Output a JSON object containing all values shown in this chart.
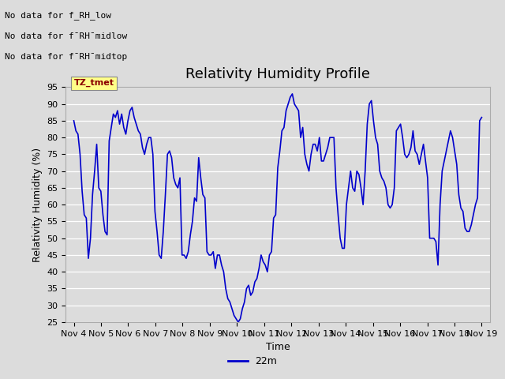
{
  "title": "Relativity Humidity Profile",
  "xlabel": "Time",
  "ylabel": "Relativity Humidity (%)",
  "ylim": [
    25,
    95
  ],
  "yticks": [
    25,
    30,
    35,
    40,
    45,
    50,
    55,
    60,
    65,
    70,
    75,
    80,
    85,
    90,
    95
  ],
  "line_color": "#0000cc",
  "line_width": 1.2,
  "bg_color": "#dcdcdc",
  "legend_label": "22m",
  "no_data_texts": [
    "No data for f_RH_low",
    "No data for f¯RH¯midlow",
    "No data for f¯RH¯midtop"
  ],
  "x_tick_labels": [
    "Nov 4",
    "Nov 5",
    "Nov 6",
    "Nov 7",
    "Nov 8",
    "Nov 9",
    "Nov 10",
    "Nov 11",
    "Nov 12",
    "Nov 13",
    "Nov 14",
    "Nov 15",
    "Nov 16",
    "Nov 17",
    "Nov 18",
    "Nov 19"
  ],
  "x_tick_positions": [
    0,
    1,
    2,
    3,
    4,
    5,
    6,
    7,
    8,
    9,
    10,
    11,
    12,
    13,
    14,
    15
  ],
  "humidity_values": [
    85,
    82,
    81,
    75,
    64,
    57,
    56,
    44,
    50,
    63,
    70,
    78,
    65,
    64,
    57,
    52,
    51,
    79,
    83,
    87,
    86,
    88,
    84,
    87,
    83,
    81,
    85,
    88,
    89,
    86,
    84,
    82,
    81,
    77,
    75,
    78,
    80,
    80,
    75,
    58,
    52,
    45,
    44,
    52,
    63,
    75,
    76,
    74,
    68,
    66,
    65,
    68,
    45,
    45,
    44,
    46,
    51,
    55,
    62,
    61,
    74,
    68,
    63,
    62,
    46,
    45,
    45,
    46,
    41,
    45,
    45,
    42,
    40,
    35,
    32,
    31,
    29,
    27,
    26,
    25,
    26,
    29,
    31,
    35,
    36,
    33,
    34,
    37,
    38,
    41,
    45,
    43,
    42,
    40,
    45,
    46,
    56,
    57,
    71,
    76,
    82,
    83,
    88,
    90,
    92,
    93,
    90,
    89,
    88,
    80,
    83,
    75,
    72,
    70,
    75,
    78,
    78,
    76,
    80,
    73,
    73,
    75,
    77,
    80,
    80,
    80,
    65,
    57,
    50,
    47,
    47,
    60,
    65,
    70,
    65,
    64,
    70,
    69,
    65,
    60,
    70,
    84,
    90,
    91,
    85,
    80,
    78,
    70,
    68,
    67,
    65,
    60,
    59,
    60,
    65,
    82,
    83,
    84,
    80,
    75,
    74,
    75,
    77,
    82,
    76,
    75,
    72,
    75,
    78,
    73,
    68,
    50,
    50,
    50,
    49,
    42,
    60,
    70,
    73,
    76,
    79,
    82,
    80,
    76,
    72,
    63,
    59,
    58,
    53,
    52,
    52,
    54,
    57,
    60,
    62,
    85,
    86
  ]
}
